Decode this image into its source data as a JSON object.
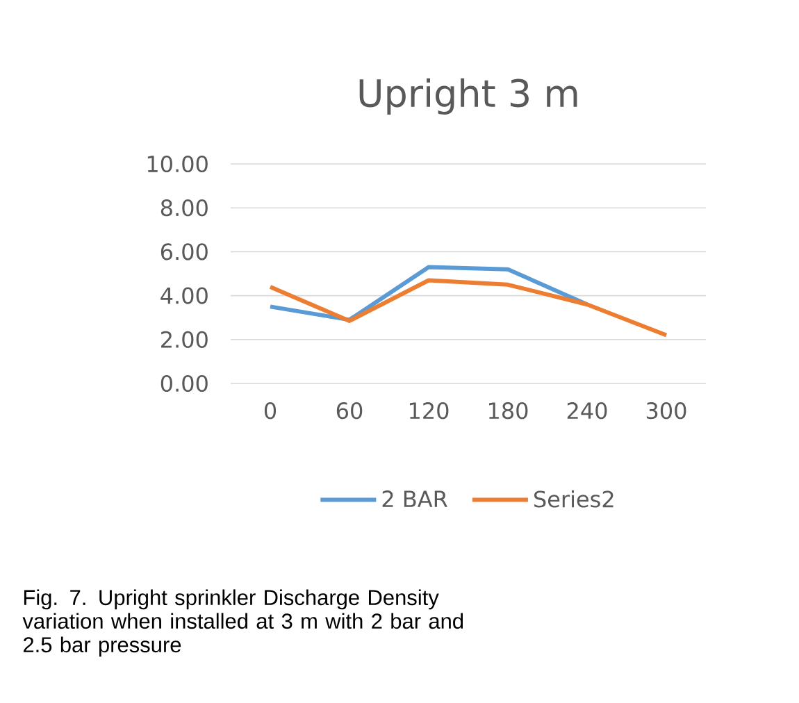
{
  "chart_data": {
    "type": "line",
    "title": "Upright 3 m",
    "categories": [
      "0",
      "60",
      "120",
      "180",
      "240",
      "300"
    ],
    "series": [
      {
        "name": "2 BAR",
        "color": "#5b9bd5",
        "values": [
          3.5,
          2.9,
          5.3,
          5.2,
          3.6,
          null
        ]
      },
      {
        "name": "Series2",
        "color": "#ed7d31",
        "values": [
          4.4,
          2.85,
          4.7,
          4.5,
          3.6,
          2.2
        ]
      }
    ],
    "ylim": [
      0,
      10
    ],
    "yticks": [
      {
        "value": 0,
        "label": "0.00"
      },
      {
        "value": 2,
        "label": "2.00"
      },
      {
        "value": 4,
        "label": "4.00"
      },
      {
        "value": 6,
        "label": "6.00"
      },
      {
        "value": 8,
        "label": "8.00"
      },
      {
        "value": 10,
        "label": "10.00"
      }
    ],
    "grid": "y",
    "legend": "bottom",
    "marker": "none",
    "line_style": "solid",
    "annotations": [
      "Fig. 7. Upright sprinkler Discharge Density variation when installed at 3 m with 2 bar and 2.5 bar pressure"
    ]
  }
}
